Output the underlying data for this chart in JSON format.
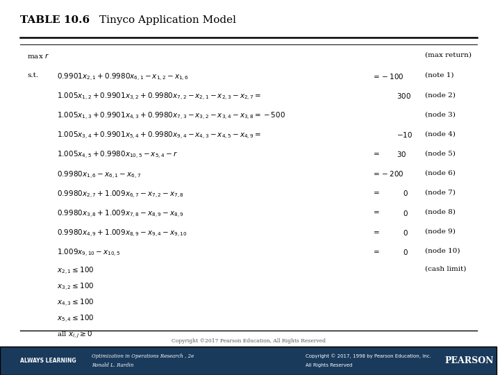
{
  "title_bold": "TABLE 10.6",
  "title_regular": "Tinyco Application Model",
  "background_color": "#ffffff",
  "line_color": "#000000",
  "footer_text": "Copyright ©2017 Pearson Education, All Rights Reserved",
  "bottom_left_line1": "Optimization in Operations Research , 2e",
  "bottom_left_line2": "Ronald L. Rardin",
  "bottom_right_line1": "Copyright © 2017, 1998 by Pearson Education, Inc.",
  "bottom_right_line2": "All Rights Reserved",
  "bottom_left_label": "ALWAYS LEARNING",
  "bottom_bg": "#1a3a5c",
  "pearson_text": "PEARSON"
}
